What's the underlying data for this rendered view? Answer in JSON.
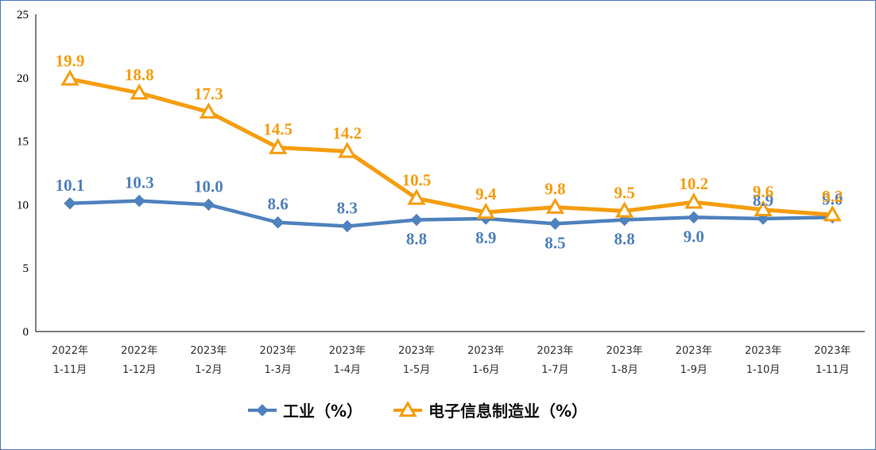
{
  "chart_data": {
    "type": "line",
    "categories": [
      [
        "2022年",
        "1-11月"
      ],
      [
        "2022年",
        "1-12月"
      ],
      [
        "2023年",
        "1-2月"
      ],
      [
        "2023年",
        "1-3月"
      ],
      [
        "2023年",
        "1-4月"
      ],
      [
        "2023年",
        "1-5月"
      ],
      [
        "2023年",
        "1-6月"
      ],
      [
        "2023年",
        "1-7月"
      ],
      [
        "2023年",
        "1-8月"
      ],
      [
        "2023年",
        "1-9月"
      ],
      [
        "2023年",
        "1-10月"
      ],
      [
        "2023年",
        "1-11月"
      ]
    ],
    "series": [
      {
        "name": "工业（%）",
        "marker": "diamond",
        "color": "#4f81bd",
        "values": [
          10.1,
          10.3,
          10.0,
          8.6,
          8.3,
          8.8,
          8.9,
          8.5,
          8.8,
          9.0,
          8.9,
          9.0
        ],
        "label_position": [
          "above",
          "above",
          "above",
          "above",
          "above",
          "below",
          "below",
          "below",
          "below",
          "below",
          "above",
          "above"
        ]
      },
      {
        "name": "电子信息制造业（%）",
        "marker": "triangle",
        "color": "#f59d0e",
        "values": [
          19.9,
          18.8,
          17.3,
          14.5,
          14.2,
          10.5,
          9.4,
          9.8,
          9.5,
          10.2,
          9.6,
          9.2
        ],
        "label_position": [
          "above",
          "above",
          "above",
          "above",
          "above",
          "above",
          "above",
          "above",
          "above",
          "above",
          "above",
          "above"
        ]
      }
    ],
    "ylim": [
      0,
      25
    ],
    "yticks": [
      "0",
      "5",
      "10",
      "15",
      "20",
      "25"
    ],
    "grid": false,
    "legend_position": "bottom-center"
  }
}
